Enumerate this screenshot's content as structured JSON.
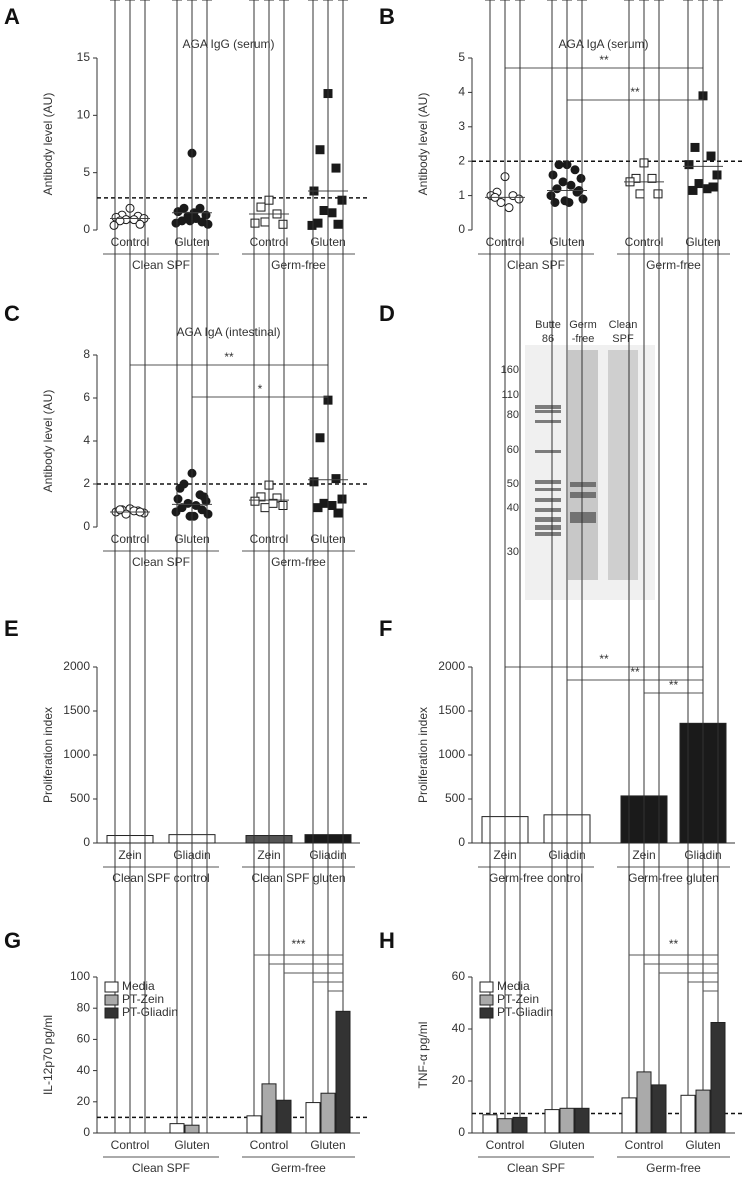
{
  "chart_data": [
    {
      "type": "dot",
      "label": "A",
      "title": "AGA IgG (serum)",
      "y_label": "Antibody level (AU)",
      "categories": [
        "Control",
        "Gluten",
        "Control",
        "Gluten"
      ],
      "groups": [
        "Clean SPF",
        "Germ-free"
      ],
      "markers": [
        "open-circle",
        "filled-circle",
        "open-square",
        "filled-square"
      ],
      "points": [
        [
          1.9,
          1.3,
          1.2,
          1.1,
          1.0,
          0.9,
          0.9,
          0.8,
          0.5,
          0.4
        ],
        [
          6.7,
          1.9,
          1.9,
          1.6,
          1.3,
          1.2,
          1.0,
          0.8,
          0.7,
          0.6,
          0.5,
          0.8,
          1.5
        ],
        [
          2.6,
          2.0,
          1.4,
          0.6,
          0.5,
          0.7
        ],
        [
          11.9,
          7.0,
          5.4,
          3.4,
          2.6,
          1.7,
          1.5,
          0.6,
          0.5,
          0.4
        ]
      ],
      "means": [
        1.0,
        1.5,
        1.4,
        3.4
      ],
      "threshold": 2.8,
      "ylim": [
        0,
        15
      ],
      "yticks": [
        0,
        5,
        10,
        15
      ]
    },
    {
      "type": "dot",
      "label": "B",
      "title": "AGA IgA (serum)",
      "y_label": "Antibody level (AU)",
      "categories": [
        "Control",
        "Gluten",
        "Control",
        "Gluten"
      ],
      "groups": [
        "Clean SPF",
        "Germ-free"
      ],
      "markers": [
        "open-circle",
        "filled-circle",
        "open-square",
        "filled-square"
      ],
      "points": [
        [
          1.55,
          1.1,
          1.0,
          1.0,
          0.9,
          0.8,
          0.65,
          0.95
        ],
        [
          1.9,
          1.9,
          1.75,
          1.6,
          1.5,
          1.4,
          1.3,
          1.2,
          1.1,
          1.0,
          0.9,
          0.85,
          0.8,
          0.8,
          1.15
        ],
        [
          1.95,
          1.5,
          1.5,
          1.4,
          1.05,
          1.05
        ],
        [
          3.9,
          2.4,
          2.15,
          1.9,
          1.6,
          1.35,
          1.2,
          1.15,
          1.25
        ]
      ],
      "means": [
        0.95,
        1.15,
        1.4,
        1.85
      ],
      "threshold": 2,
      "brackets": [
        {
          "from": 0,
          "to": 3,
          "label": "**"
        },
        {
          "from": 1,
          "to": 3,
          "label": "**"
        }
      ],
      "ylim": [
        0,
        5
      ],
      "yticks": [
        0,
        1,
        2,
        3,
        4,
        5
      ]
    },
    {
      "type": "dot",
      "label": "C",
      "title": "AGA IgA (intestinal)",
      "y_label": "Antibody level (AU)",
      "categories": [
        "Control",
        "Gluten",
        "Control",
        "Gluten"
      ],
      "groups": [
        "Clean SPF",
        "Germ-free"
      ],
      "markers": [
        "open-circle",
        "filled-circle",
        "open-square",
        "filled-square"
      ],
      "points": [
        [
          0.85,
          0.8,
          0.75,
          0.7,
          0.65,
          0.6,
          0.75,
          0.8,
          0.7
        ],
        [
          2.5,
          2.0,
          1.5,
          1.3,
          1.2,
          1.1,
          1.0,
          0.9,
          0.8,
          0.7,
          0.6,
          0.5,
          0.5,
          1.8,
          1.4
        ],
        [
          1.95,
          1.4,
          1.35,
          1.2,
          1.0,
          0.9,
          1.1
        ],
        [
          5.9,
          4.15,
          2.25,
          2.1,
          1.3,
          1.1,
          1.0,
          0.9,
          0.65
        ]
      ],
      "means": [
        0.7,
        1.05,
        1.25,
        2.2
      ],
      "threshold": 2,
      "brackets": [
        {
          "from": 0,
          "to": 3,
          "label": "**"
        },
        {
          "from": 1,
          "to": 3,
          "label": "*"
        }
      ],
      "ylim": [
        0,
        8
      ],
      "yticks": [
        0,
        2,
        4,
        6,
        8
      ]
    },
    {
      "type": "gel",
      "label": "D",
      "lanes": [
        [
          "Butte",
          "86"
        ],
        [
          "Germ",
          "-free"
        ],
        [
          "Clean",
          "SPF"
        ]
      ],
      "markers": [
        160,
        110,
        80,
        60,
        50,
        40,
        30
      ]
    },
    {
      "type": "bar",
      "label": "E",
      "y_label": "Proliferation index",
      "categories": [
        "Zein",
        "Gliadin",
        "Zein",
        "Gliadin"
      ],
      "groups": [
        "Clean SPF control",
        "Clean SPF gluten"
      ],
      "values": [
        85,
        95,
        85,
        95
      ],
      "errors": [
        5,
        15,
        8,
        15
      ],
      "colors": [
        "#ffffff",
        "#ffffff",
        "#555555",
        "#1a1a1a"
      ],
      "ylim": [
        0,
        2000
      ],
      "yticks": [
        0,
        500,
        1000,
        1500,
        2000
      ]
    },
    {
      "type": "bar",
      "label": "F",
      "y_label": "Proliferation index",
      "categories": [
        "Zein",
        "Gliadin",
        "Zein",
        "Gliadin"
      ],
      "groups": [
        "Germ-free control",
        "Germ-free gluten"
      ],
      "values": [
        300,
        320,
        535,
        1360
      ],
      "errors": [
        45,
        15,
        40,
        270
      ],
      "colors": [
        "#ffffff",
        "#ffffff",
        "#1a1a1a",
        "#1a1a1a"
      ],
      "brackets": [
        {
          "from": 0,
          "to": 3,
          "label": "**"
        },
        {
          "from": 1,
          "to": 3,
          "label": "**"
        },
        {
          "from": 2,
          "to": 3,
          "label": "**"
        }
      ],
      "ylim": [
        0,
        2000
      ],
      "yticks": [
        0,
        500,
        1000,
        1500,
        2000
      ]
    },
    {
      "type": "grouped_bar",
      "label": "G",
      "y_label": "IL-12p70 pg/ml",
      "categories": [
        "Control",
        "Gluten",
        "Control",
        "Gluten"
      ],
      "groups": [
        "Clean SPF",
        "Germ-free"
      ],
      "series": [
        {
          "name": "Media",
          "color": "#ffffff",
          "values": [
            0,
            6,
            11,
            19.5
          ],
          "errors": [
            0,
            4,
            3,
            5
          ]
        },
        {
          "name": "PT-Zein",
          "color": "#aaaaaa",
          "values": [
            0,
            5,
            31.5,
            25.5
          ],
          "errors": [
            0,
            5,
            1.5,
            8
          ]
        },
        {
          "name": "PT-Gliadin",
          "color": "#333333",
          "values": [
            0,
            0,
            21,
            78
          ],
          "errors": [
            0,
            0,
            3,
            8
          ]
        }
      ],
      "threshold": 10,
      "significance": "***",
      "ylim": [
        0,
        100
      ],
      "yticks": [
        0,
        20,
        40,
        60,
        80,
        100
      ]
    },
    {
      "type": "grouped_bar",
      "label": "H",
      "y_label": "TNF-α pg/ml",
      "categories": [
        "Control",
        "Gluten",
        "Control",
        "Gluten"
      ],
      "groups": [
        "Clean SPF",
        "Germ-free"
      ],
      "series": [
        {
          "name": "Media",
          "color": "#ffffff",
          "values": [
            7,
            9,
            13.5,
            14.5
          ],
          "errors": [
            0.5,
            1.5,
            2,
            2
          ]
        },
        {
          "name": "PT-Zein",
          "color": "#aaaaaa",
          "values": [
            5.5,
            9.5,
            23.5,
            16.5
          ],
          "errors": [
            0.5,
            2,
            1,
            2.5
          ]
        },
        {
          "name": "PT-Gliadin",
          "color": "#333333",
          "values": [
            6,
            9.5,
            18.5,
            42.5
          ],
          "errors": [
            0.5,
            2.5,
            2,
            5
          ]
        }
      ],
      "threshold": 7.5,
      "significance": "**",
      "ylim": [
        0,
        60
      ],
      "yticks": [
        0,
        20,
        40,
        60
      ]
    }
  ]
}
